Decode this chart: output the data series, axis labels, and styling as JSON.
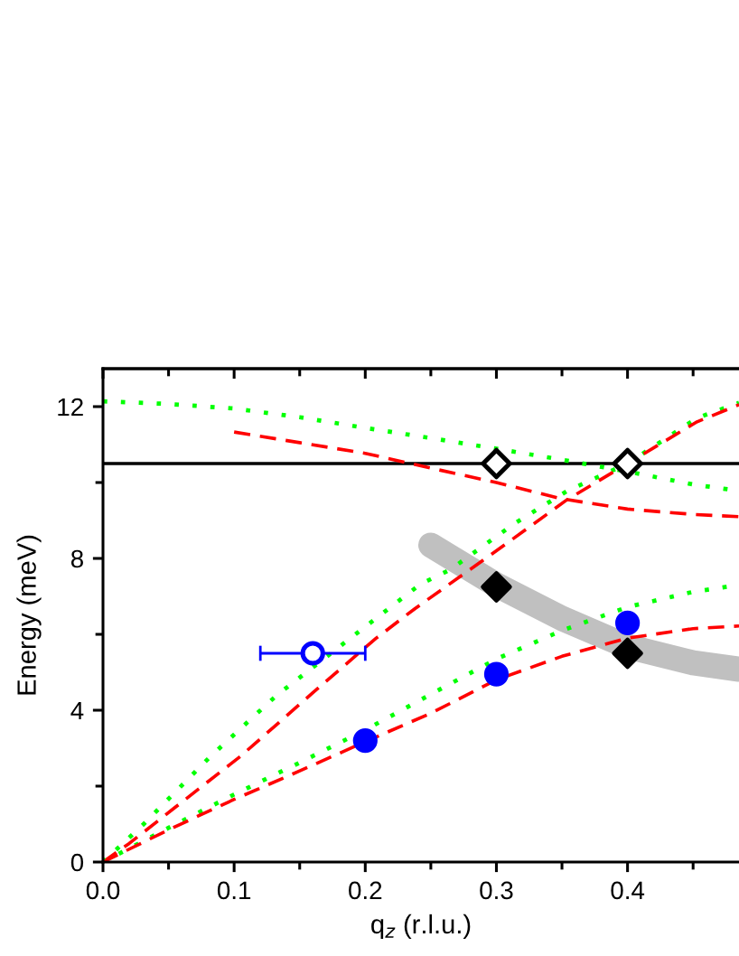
{
  "chart_data": {
    "type": "line",
    "xlabel": "q$_{z}$ (r.l.u.)",
    "ylabel": "Energy (meV)",
    "xlim": [
      0,
      0.485
    ],
    "xticks": [
      {
        "value": 0,
        "label": "0.0"
      },
      {
        "value": 0.05,
        "label": null
      },
      0.1,
      {
        "value": 0.15,
        "label": null
      },
      0.2,
      {
        "value": 0.25,
        "label": null
      },
      0.3,
      {
        "value": 0.35,
        "label": null
      },
      0.4,
      {
        "value": 0.45,
        "label": null
      }
    ],
    "ylim": [
      0,
      13
    ],
    "yticks": [
      0,
      {
        "value": 2,
        "label": null
      },
      4,
      {
        "value": 6,
        "label": null
      },
      8,
      {
        "value": 10,
        "label": null
      },
      12
    ],
    "ref_lines": [
      {
        "axis": "y",
        "value": 10.5,
        "color": "#000000",
        "line_style": "solid"
      }
    ],
    "series": [
      {
        "color": "#c0c0c0",
        "line_style": "solid",
        "x": [
          0.25,
          0.3,
          0.35,
          0.4,
          0.45,
          0.485
        ],
        "values": [
          8.35,
          7.3,
          6.42,
          5.68,
          5.25,
          5.08
        ]
      },
      {
        "color": "#00ff00",
        "line_style": "dotted",
        "x": [
          0,
          0.05,
          0.1,
          0.15,
          0.2,
          0.25,
          0.3,
          0.35,
          0.4,
          0.45,
          0.485
        ],
        "values": [
          12.14,
          12.07,
          11.95,
          11.72,
          11.44,
          11.17,
          10.89,
          10.6,
          10.29,
          9.95,
          9.78
        ]
      },
      {
        "color": "#ff0000",
        "line_style": "dashed",
        "x": [
          0.1,
          0.15,
          0.2,
          0.25,
          0.3,
          0.35,
          0.4,
          0.45,
          0.485
        ],
        "values": [
          11.33,
          11.05,
          10.77,
          10.38,
          10.0,
          9.57,
          9.3,
          9.16,
          9.1
        ]
      },
      {
        "color": "#00ff00",
        "line_style": "dotted",
        "x": [
          0,
          0.031,
          0.081,
          0.132,
          0.2,
          0.242,
          0.265,
          0.313,
          0.354,
          0.4,
          0.453,
          0.485
        ],
        "values": [
          0,
          1.0,
          2.75,
          4.38,
          6.2,
          7.32,
          7.71,
          8.9,
          9.78,
          10.5,
          11.7,
          12.1
        ]
      },
      {
        "color": "#ff0000",
        "line_style": "dashed",
        "x": [
          0,
          0.02,
          0.055,
          0.105,
          0.16,
          0.208,
          0.238,
          0.306,
          0.354,
          0.4,
          0.453,
          0.485
        ],
        "values": [
          0,
          0.49,
          1.44,
          2.79,
          4.46,
          5.89,
          6.68,
          8.35,
          9.55,
          10.5,
          11.6,
          12.05
        ]
      },
      {
        "color": "#00ff00",
        "line_style": "dotted",
        "x": [
          0,
          0.05,
          0.1,
          0.15,
          0.2,
          0.25,
          0.3,
          0.35,
          0.4,
          0.45,
          0.485
        ],
        "values": [
          0,
          0.9,
          1.78,
          2.62,
          3.48,
          4.42,
          5.35,
          6.1,
          6.72,
          7.12,
          7.3
        ]
      },
      {
        "color": "#ff0000",
        "line_style": "dashed",
        "x": [
          0,
          0.05,
          0.1,
          0.15,
          0.2,
          0.25,
          0.3,
          0.35,
          0.4,
          0.45,
          0.485
        ],
        "values": [
          0,
          0.85,
          1.65,
          2.4,
          3.17,
          3.92,
          4.8,
          5.42,
          5.9,
          6.15,
          6.22
        ]
      },
      {
        "type": "scatter",
        "color": "#000000",
        "colors": [
          "#ffffff",
          "#ffffff"
        ],
        "marker": "diamond",
        "x": [
          0.3,
          0.4
        ],
        "values": [
          10.5,
          10.5
        ]
      },
      {
        "type": "scatter",
        "color": "#000000",
        "marker": "diamond",
        "x": [
          0.3,
          0.4
        ],
        "values": [
          7.25,
          5.5
        ]
      },
      {
        "type": "scatter",
        "color": "#0000ff",
        "marker": "circle",
        "x": [
          0.2,
          0.3,
          0.4
        ],
        "values": [
          3.2,
          4.95,
          6.3
        ]
      },
      {
        "type": "scatter",
        "color": "#0000ff",
        "colors": [
          "#ffffff"
        ],
        "marker": "circle",
        "x": [
          0.16
        ],
        "values": [
          5.5
        ],
        "xerrors": [
          0.04
        ]
      }
    ]
  }
}
